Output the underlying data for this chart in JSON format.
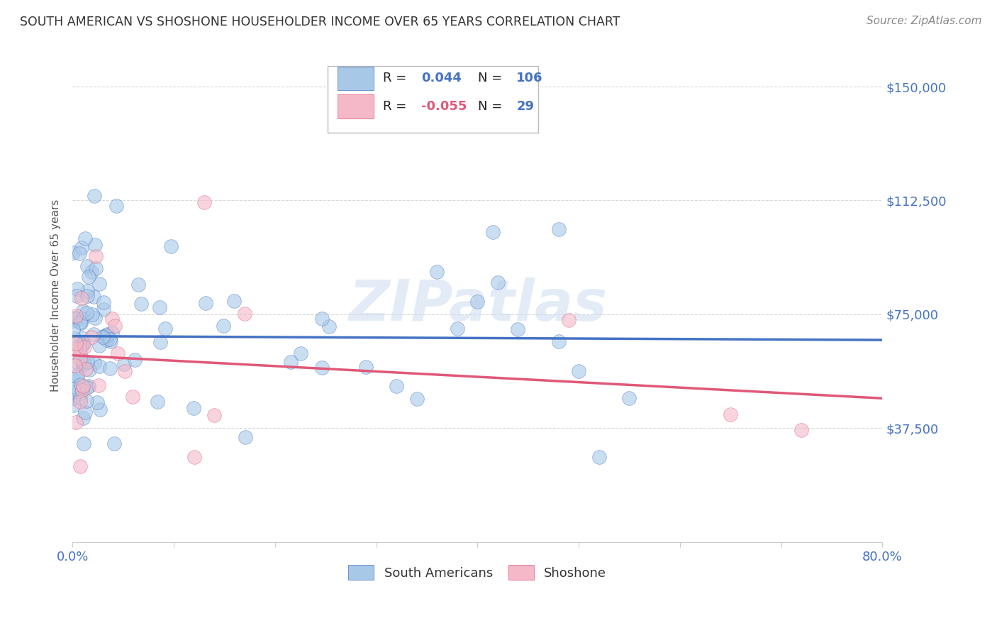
{
  "title": "SOUTH AMERICAN VS SHOSHONE HOUSEHOLDER INCOME OVER 65 YEARS CORRELATION CHART",
  "source": "Source: ZipAtlas.com",
  "ylabel": "Householder Income Over 65 years",
  "xlim": [
    0.0,
    0.8
  ],
  "ylim": [
    0,
    162500
  ],
  "yticks": [
    0,
    37500,
    75000,
    112500,
    150000
  ],
  "ytick_labels": [
    "",
    "$37,500",
    "$75,000",
    "$112,500",
    "$150,000"
  ],
  "blue_color": "#a8c8e8",
  "pink_color": "#f4b8c8",
  "line_blue": "#4472c4",
  "line_pink": "#e05878",
  "R_blue": 0.044,
  "N_blue": 106,
  "R_pink": -0.055,
  "N_pink": 29,
  "legend_label_blue": "South Americans",
  "legend_label_pink": "Shoshone",
  "watermark": "ZIPatlas",
  "background_color": "#ffffff",
  "grid_color": "#d8d8d8",
  "title_color": "#333333",
  "axis_label_color": "#4472c4",
  "source_color": "#888888"
}
